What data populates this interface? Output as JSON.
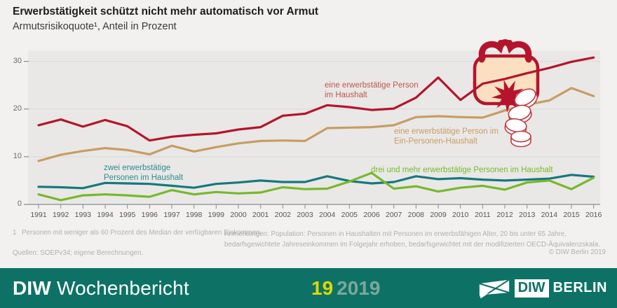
{
  "title": "Erwerbstätigkeit schützt nicht mehr automatisch vor Armut",
  "subtitle": "Armutsrisikoquote¹, Anteil in Prozent",
  "chart_data": {
    "type": "line",
    "x": [
      1991,
      1992,
      1993,
      1994,
      1995,
      1996,
      1997,
      1998,
      1999,
      2000,
      2001,
      2002,
      2003,
      2004,
      2005,
      2006,
      2007,
      2008,
      2009,
      2010,
      2011,
      2012,
      2013,
      2014,
      2015,
      2016
    ],
    "ylim": [
      0,
      30
    ],
    "yticks": [
      0,
      10,
      20,
      30
    ],
    "grid": "horizontal",
    "legend_position": "inline-labels",
    "illustration": "coin-purse-with-falling-coins",
    "series": [
      {
        "name": "eine erwerbstätige Person im Haushalt",
        "color": "#b5142c",
        "label_color": "#bf554b",
        "label_lines": [
          "eine erwerbstätige Person",
          "im Haushalt"
        ],
        "values": [
          16.6,
          17.8,
          16.3,
          17.7,
          16.4,
          13.4,
          14.2,
          14.6,
          14.9,
          15.7,
          16.2,
          18.6,
          19.0,
          20.8,
          20.4,
          19.8,
          20.1,
          22.4,
          26.6,
          21.9,
          25.3,
          26.3,
          27.5,
          28.6,
          29.9,
          30.8
        ]
      },
      {
        "name": "eine erwerbstätige Person im Ein-Personen-Haushalt",
        "color": "#c89c64",
        "label_color": "#c89c64",
        "label_lines": [
          "eine erwerbstätige Person im",
          "Ein-Personen-Haushalt"
        ],
        "values": [
          9.1,
          10.4,
          11.2,
          11.8,
          11.4,
          10.5,
          12.3,
          11.1,
          12.0,
          12.8,
          13.3,
          13.4,
          13.3,
          16.0,
          16.1,
          16.2,
          16.6,
          18.3,
          18.5,
          18.3,
          18.2,
          19.7,
          20.9,
          21.8,
          24.4,
          22.7
        ]
      },
      {
        "name": "zwei erwerbstätige Personen im Haushalt",
        "color": "#17787e",
        "label_color": "#2e8b90",
        "label_lines": [
          "zwei erwerbstätige",
          "Personen im Haushalt"
        ],
        "values": [
          3.7,
          3.6,
          3.4,
          4.5,
          4.4,
          4.3,
          3.9,
          3.5,
          4.3,
          4.6,
          5.0,
          4.7,
          4.7,
          5.9,
          4.9,
          4.4,
          4.7,
          5.9,
          5.3,
          5.5,
          5.2,
          5.0,
          5.2,
          5.4,
          6.2,
          5.8
        ]
      },
      {
        "name": "drei und mehr erwerbstätige Personen im Haushalt",
        "color": "#77b82c",
        "label_color": "#77b82c",
        "label_lines": [
          "drei und mehr erwerbstätige Personen im Haushalt"
        ],
        "values": [
          2.1,
          0.9,
          1.9,
          2.1,
          1.9,
          1.6,
          3.0,
          2.1,
          2.6,
          2.3,
          2.5,
          3.6,
          3.2,
          3.3,
          4.8,
          6.6,
          3.3,
          3.8,
          2.7,
          3.5,
          3.9,
          3.1,
          4.6,
          5.0,
          3.2,
          5.6
        ]
      }
    ]
  },
  "footnotes": {
    "marker": "1",
    "definition": "Personen mit weniger als 60 Prozent des Median der verfügbaren Einkommen.",
    "sources": "Quellen: SOEPv34; eigene Berechnungen.",
    "remarks": [
      "Anmerkungen: Population: Personen in Haushalten mit Personen im erwerbsfähigen Alter, 20 bis unter 65 Jahre,",
      "bedarfsgewichtete Jahreseinkommen im Folgejahr erhoben, bedarfsgewichtet mit der modifizierten OECD-Äquivalenzskala."
    ],
    "copyright": "© DIW Berlin 2019"
  },
  "footer": {
    "brand_bold": "DIW",
    "brand_rest": "Wochenbericht",
    "issue_number": "19",
    "issue_year": "2019",
    "logo_diw": "DIW",
    "logo_berlin": "BERLIN",
    "colors": {
      "background": "#0d7265",
      "issue_number": "#e0d800",
      "issue_year": "#7ea79c"
    }
  }
}
